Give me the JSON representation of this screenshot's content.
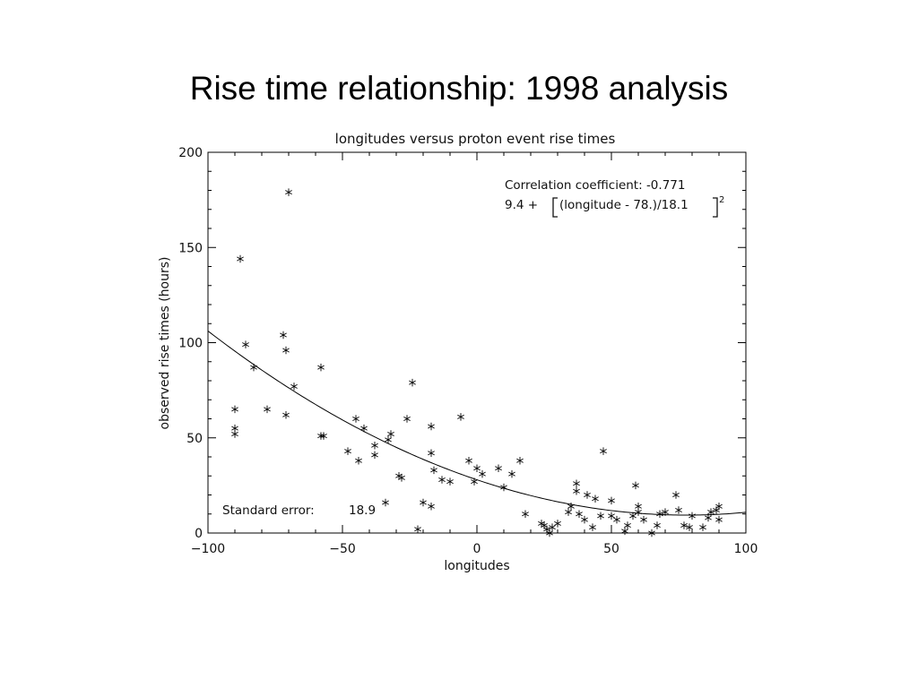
{
  "slide": {
    "title": "Rise time relationship: 1998 analysis"
  },
  "chart_data": {
    "type": "scatter",
    "title": "longitudes versus proton event rise times",
    "xlabel": "longitudes",
    "ylabel": "observed rise times (hours)",
    "xlim": [
      -100,
      100
    ],
    "ylim": [
      0,
      200
    ],
    "xticks": [
      -100,
      -50,
      0,
      50,
      100
    ],
    "yticks": [
      0,
      50,
      100,
      150,
      200
    ],
    "grid": false,
    "marker": "asterisk",
    "annotations": {
      "correlation": "Correlation coefficient: -0.771",
      "fit_prefix": "9.4 + ",
      "fit_inner": "(longitude - 78.)/18.1",
      "fit_exponent": "2",
      "standard_error_label": "Standard error:",
      "standard_error_value": "18.9"
    },
    "fit": {
      "a": 9.4,
      "x0": 78,
      "s": 18.1
    },
    "points": [
      [
        -70,
        179
      ],
      [
        -88,
        144
      ],
      [
        -72,
        104
      ],
      [
        -71,
        96
      ],
      [
        -86,
        99
      ],
      [
        -83,
        87
      ],
      [
        -90,
        65
      ],
      [
        -90,
        55
      ],
      [
        -90,
        52
      ],
      [
        -78,
        65
      ],
      [
        -71,
        62
      ],
      [
        -68,
        77
      ],
      [
        -58,
        87
      ],
      [
        -58,
        51
      ],
      [
        -57,
        51
      ],
      [
        -48,
        43
      ],
      [
        -45,
        60
      ],
      [
        -42,
        55
      ],
      [
        -44,
        38
      ],
      [
        -38,
        46
      ],
      [
        -38,
        41
      ],
      [
        -34,
        16
      ],
      [
        -32,
        52
      ],
      [
        -33,
        49
      ],
      [
        -29,
        30
      ],
      [
        -28,
        29
      ],
      [
        -26,
        60
      ],
      [
        -24,
        79
      ],
      [
        -22,
        2
      ],
      [
        -20,
        16
      ],
      [
        -17,
        56
      ],
      [
        -17,
        42
      ],
      [
        -16,
        33
      ],
      [
        -17,
        14
      ],
      [
        -13,
        28
      ],
      [
        -10,
        27
      ],
      [
        -6,
        61
      ],
      [
        -3,
        38
      ],
      [
        -1,
        27
      ],
      [
        0,
        34
      ],
      [
        2,
        31
      ],
      [
        8,
        34
      ],
      [
        10,
        24
      ],
      [
        13,
        31
      ],
      [
        16,
        38
      ],
      [
        18,
        10
      ],
      [
        24,
        5
      ],
      [
        25,
        4
      ],
      [
        26,
        2
      ],
      [
        27,
        0
      ],
      [
        28,
        3
      ],
      [
        30,
        5
      ],
      [
        34,
        11
      ],
      [
        35,
        14
      ],
      [
        37,
        26
      ],
      [
        37,
        22
      ],
      [
        38,
        10
      ],
      [
        40,
        7
      ],
      [
        41,
        20
      ],
      [
        43,
        3
      ],
      [
        44,
        18
      ],
      [
        46,
        9
      ],
      [
        47,
        43
      ],
      [
        50,
        17
      ],
      [
        50,
        9
      ],
      [
        52,
        7
      ],
      [
        55,
        1
      ],
      [
        56,
        4
      ],
      [
        58,
        9
      ],
      [
        59,
        25
      ],
      [
        60,
        14
      ],
      [
        60,
        11
      ],
      [
        62,
        7
      ],
      [
        65,
        0
      ],
      [
        67,
        4
      ],
      [
        68,
        10
      ],
      [
        70,
        11
      ],
      [
        74,
        20
      ],
      [
        75,
        12
      ],
      [
        77,
        4
      ],
      [
        79,
        3
      ],
      [
        80,
        9
      ],
      [
        84,
        3
      ],
      [
        86,
        8
      ],
      [
        87,
        11
      ],
      [
        89,
        12
      ],
      [
        90,
        14
      ],
      [
        90,
        7
      ]
    ]
  }
}
